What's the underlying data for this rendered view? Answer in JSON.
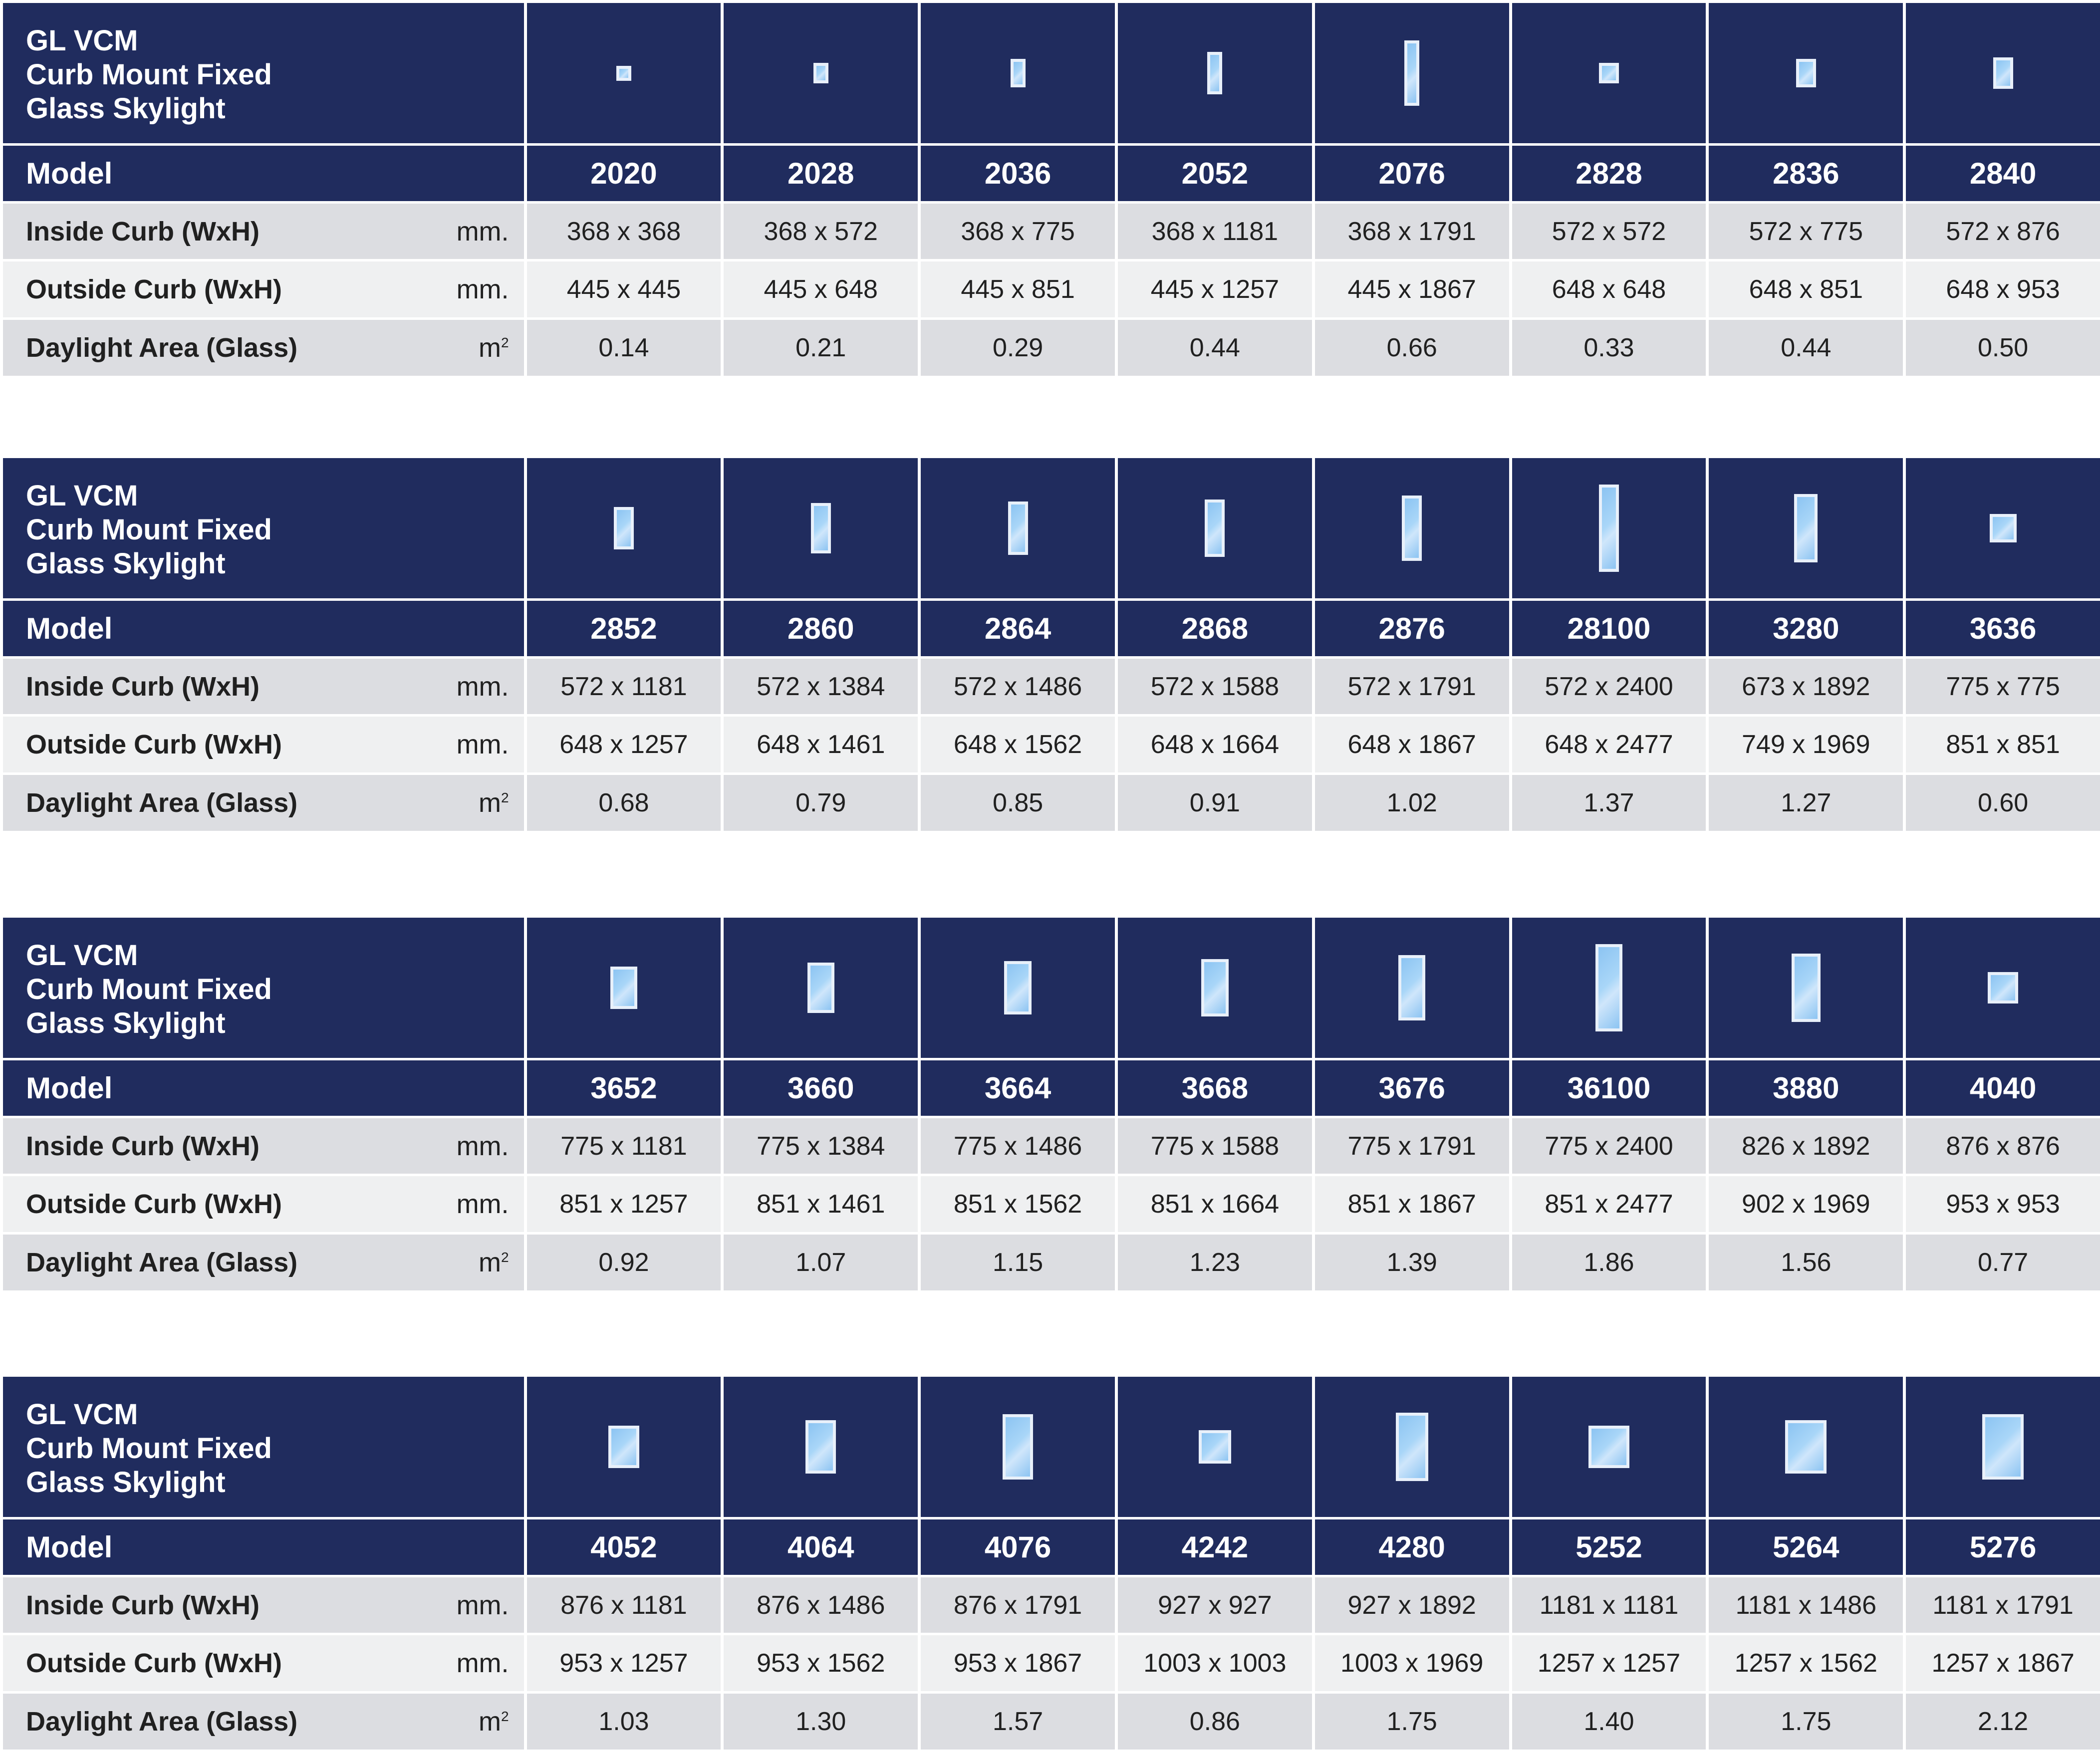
{
  "tables": [
    {
      "title_lines": [
        "GL VCM",
        "Curb Mount Fixed",
        "Glass Skylight"
      ],
      "labels": {
        "model": "Model",
        "inside": "Inside Curb (WxH)",
        "outside": "Outside Curb (WxH)",
        "daylight": "Daylight Area (Glass)"
      },
      "units": {
        "inside": "mm.",
        "outside": "mm.",
        "daylight": "m"
      },
      "daylight_unit_sup": "2",
      "models": [
        {
          "model": "2020",
          "inside": "368 x 368",
          "outside": "445 x 445",
          "daylight": "0.14",
          "icon": "skylight-icon"
        },
        {
          "model": "2028",
          "inside": "368 x 572",
          "outside": "445 x 648",
          "daylight": "0.21",
          "icon": "skylight-icon"
        },
        {
          "model": "2036",
          "inside": "368 x 775",
          "outside": "445 x 851",
          "daylight": "0.29",
          "icon": "skylight-icon"
        },
        {
          "model": "2052",
          "inside": "368 x 1181",
          "outside": "445 x 1257",
          "daylight": "0.44",
          "icon": "skylight-icon"
        },
        {
          "model": "2076",
          "inside": "368 x 1791",
          "outside": "445 x 1867",
          "daylight": "0.66",
          "icon": "skylight-icon"
        },
        {
          "model": "2828",
          "inside": "572 x 572",
          "outside": "648 x 648",
          "daylight": "0.33",
          "icon": "skylight-icon"
        },
        {
          "model": "2836",
          "inside": "572 x 775",
          "outside": "648 x 851",
          "daylight": "0.44",
          "icon": "skylight-icon"
        },
        {
          "model": "2840",
          "inside": "572 x 876",
          "outside": "648 x 953",
          "daylight": "0.50",
          "icon": "skylight-icon"
        }
      ]
    },
    {
      "title_lines": [
        "GL VCM",
        "Curb Mount Fixed",
        "Glass Skylight"
      ],
      "labels": {
        "model": "Model",
        "inside": "Inside Curb (WxH)",
        "outside": "Outside Curb (WxH)",
        "daylight": "Daylight Area (Glass)"
      },
      "units": {
        "inside": "mm.",
        "outside": "mm.",
        "daylight": "m"
      },
      "daylight_unit_sup": "2",
      "models": [
        {
          "model": "2852",
          "inside": "572 x 1181",
          "outside": "648 x 1257",
          "daylight": "0.68",
          "icon": "skylight-icon"
        },
        {
          "model": "2860",
          "inside": "572 x 1384",
          "outside": "648 x 1461",
          "daylight": "0.79",
          "icon": "skylight-icon"
        },
        {
          "model": "2864",
          "inside": "572 x 1486",
          "outside": "648 x 1562",
          "daylight": "0.85",
          "icon": "skylight-icon"
        },
        {
          "model": "2868",
          "inside": "572 x 1588",
          "outside": "648 x 1664",
          "daylight": "0.91",
          "icon": "skylight-icon"
        },
        {
          "model": "2876",
          "inside": "572 x 1791",
          "outside": "648 x 1867",
          "daylight": "1.02",
          "icon": "skylight-icon"
        },
        {
          "model": "28100",
          "inside": "572 x 2400",
          "outside": "648 x 2477",
          "daylight": "1.37",
          "icon": "skylight-icon"
        },
        {
          "model": "3280",
          "inside": "673 x 1892",
          "outside": "749 x 1969",
          "daylight": "1.27",
          "icon": "skylight-icon"
        },
        {
          "model": "3636",
          "inside": "775 x 775",
          "outside": "851 x 851",
          "daylight": "0.60",
          "icon": "skylight-icon"
        }
      ]
    },
    {
      "title_lines": [
        "GL VCM",
        "Curb Mount Fixed",
        "Glass Skylight"
      ],
      "labels": {
        "model": "Model",
        "inside": "Inside Curb (WxH)",
        "outside": "Outside Curb (WxH)",
        "daylight": "Daylight Area (Glass)"
      },
      "units": {
        "inside": "mm.",
        "outside": "mm.",
        "daylight": "m"
      },
      "daylight_unit_sup": "2",
      "models": [
        {
          "model": "3652",
          "inside": "775 x 1181",
          "outside": "851 x 1257",
          "daylight": "0.92",
          "icon": "skylight-icon"
        },
        {
          "model": "3660",
          "inside": "775 x 1384",
          "outside": "851 x 1461",
          "daylight": "1.07",
          "icon": "skylight-icon"
        },
        {
          "model": "3664",
          "inside": "775 x 1486",
          "outside": "851 x 1562",
          "daylight": "1.15",
          "icon": "skylight-icon"
        },
        {
          "model": "3668",
          "inside": "775 x 1588",
          "outside": "851 x 1664",
          "daylight": "1.23",
          "icon": "skylight-icon"
        },
        {
          "model": "3676",
          "inside": "775 x 1791",
          "outside": "851 x 1867",
          "daylight": "1.39",
          "icon": "skylight-icon"
        },
        {
          "model": "36100",
          "inside": "775 x 2400",
          "outside": "851 x 2477",
          "daylight": "1.86",
          "icon": "skylight-icon"
        },
        {
          "model": "3880",
          "inside": "826 x 1892",
          "outside": "902 x 1969",
          "daylight": "1.56",
          "icon": "skylight-icon"
        },
        {
          "model": "4040",
          "inside": "876 x 876",
          "outside": "953 x 953",
          "daylight": "0.77",
          "icon": "skylight-icon"
        }
      ]
    },
    {
      "title_lines": [
        "GL VCM",
        "Curb Mount Fixed",
        "Glass Skylight"
      ],
      "labels": {
        "model": "Model",
        "inside": "Inside Curb (WxH)",
        "outside": "Outside Curb (WxH)",
        "daylight": "Daylight Area (Glass)"
      },
      "units": {
        "inside": "mm.",
        "outside": "mm.",
        "daylight": "m"
      },
      "daylight_unit_sup": "2",
      "models": [
        {
          "model": "4052",
          "inside": "876 x 1181",
          "outside": "953 x 1257",
          "daylight": "1.03",
          "icon": "skylight-icon"
        },
        {
          "model": "4064",
          "inside": "876 x 1486",
          "outside": "953 x 1562",
          "daylight": "1.30",
          "icon": "skylight-icon"
        },
        {
          "model": "4076",
          "inside": "876 x 1791",
          "outside": "953 x 1867",
          "daylight": "1.57",
          "icon": "skylight-icon"
        },
        {
          "model": "4242",
          "inside": "927 x 927",
          "outside": "1003 x 1003",
          "daylight": "0.86",
          "icon": "skylight-icon"
        },
        {
          "model": "4280",
          "inside": "927 x 1892",
          "outside": "1003 x 1969",
          "daylight": "1.75",
          "icon": "skylight-icon"
        },
        {
          "model": "5252",
          "inside": "1181 x 1181",
          "outside": "1257 x 1257",
          "daylight": "1.40",
          "icon": "skylight-icon"
        },
        {
          "model": "5264",
          "inside": "1181 x 1486",
          "outside": "1257 x 1562",
          "daylight": "1.75",
          "icon": "skylight-icon"
        },
        {
          "model": "5276",
          "inside": "1181 x 1791",
          "outside": "1257 x 1867",
          "daylight": "2.12",
          "icon": "skylight-icon"
        }
      ]
    }
  ],
  "colors": {
    "header": "#202c5e",
    "row_dark": "#dcdde1",
    "row_light": "#eff0f1",
    "glass": "#a9d6f8"
  }
}
